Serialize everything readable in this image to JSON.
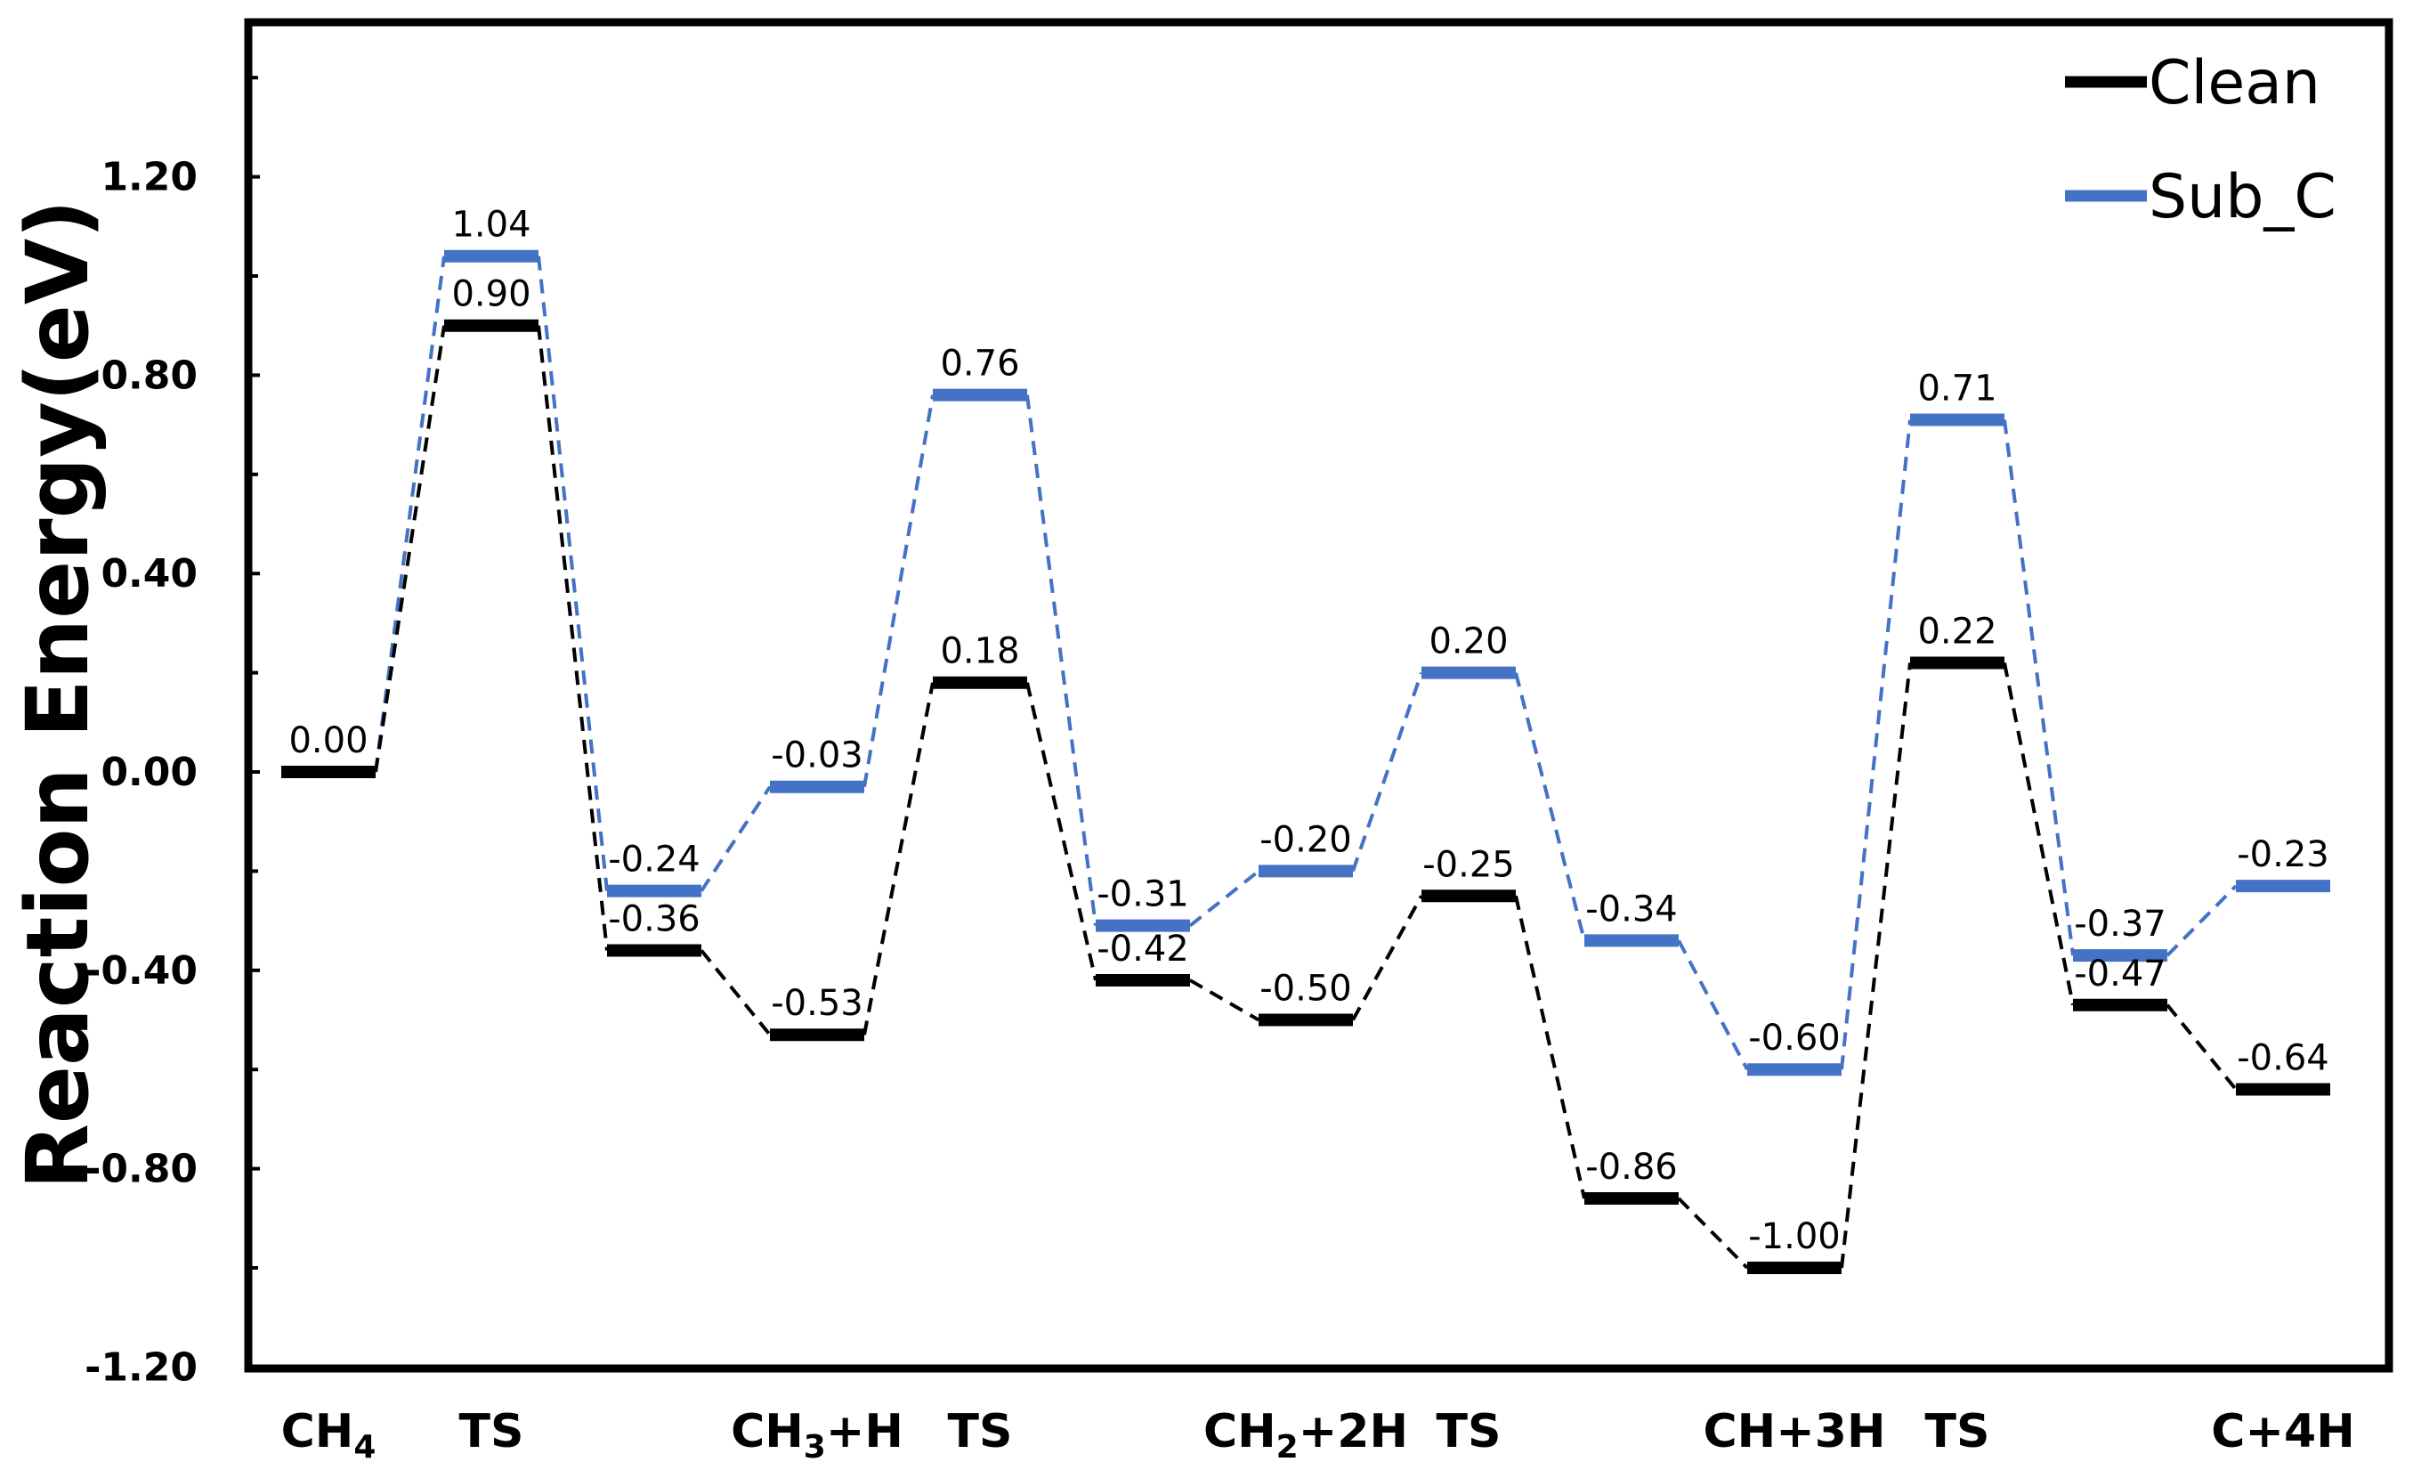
{
  "chart_data": {
    "type": "line",
    "title": "",
    "xlabel": "",
    "ylabel": "Reaction Energy(eV)",
    "ylim": [
      -1.2,
      1.5
    ],
    "yticks": [
      -1.2,
      -0.8,
      -0.4,
      0.0,
      0.4,
      0.8,
      1.2
    ],
    "ytick_labels": [
      "-1.20",
      "-0.80",
      "-0.40",
      "0.00",
      "0.40",
      "0.80",
      "1.20"
    ],
    "categories": [
      {
        "main": "CH",
        "sub": "4",
        "rest": ""
      },
      {
        "main": "TS",
        "sub": "",
        "rest": ""
      },
      {
        "main": "",
        "sub": "",
        "rest": ""
      },
      {
        "main": "CH",
        "sub": "3",
        "rest": "+H"
      },
      {
        "main": "TS",
        "sub": "",
        "rest": ""
      },
      {
        "main": "",
        "sub": "",
        "rest": ""
      },
      {
        "main": "CH",
        "sub": "2",
        "rest": "+2H"
      },
      {
        "main": "TS",
        "sub": "",
        "rest": ""
      },
      {
        "main": "",
        "sub": "",
        "rest": ""
      },
      {
        "main": "CH+3H",
        "sub": "",
        "rest": ""
      },
      {
        "main": "TS",
        "sub": "",
        "rest": ""
      },
      {
        "main": "",
        "sub": "",
        "rest": ""
      },
      {
        "main": "C+4H",
        "sub": "",
        "rest": ""
      }
    ],
    "series": [
      {
        "name": "Clean",
        "color": "#000000",
        "values": [
          0.0,
          0.9,
          -0.36,
          -0.53,
          0.18,
          -0.42,
          -0.5,
          -0.25,
          -0.86,
          -1.0,
          0.22,
          -0.47,
          -0.64
        ],
        "labels": [
          "0.00",
          "0.90",
          "-0.36",
          "-0.53",
          "0.18",
          "-0.42",
          "-0.50",
          "-0.25",
          "-0.86",
          "-1.00",
          "0.22",
          "-0.47",
          "-0.64"
        ]
      },
      {
        "name": "Sub_C",
        "color": "#4472C4",
        "values": [
          0.0,
          1.04,
          -0.24,
          -0.03,
          0.76,
          -0.31,
          -0.2,
          0.2,
          -0.34,
          -0.6,
          0.71,
          -0.37,
          -0.23
        ],
        "labels": [
          null,
          "1.04",
          "-0.24",
          "-0.03",
          "0.76",
          "-0.31",
          "-0.20",
          "0.20",
          "-0.34",
          "-0.60",
          "0.71",
          "-0.37",
          "-0.23"
        ]
      }
    ],
    "legend_position": "top-right"
  }
}
